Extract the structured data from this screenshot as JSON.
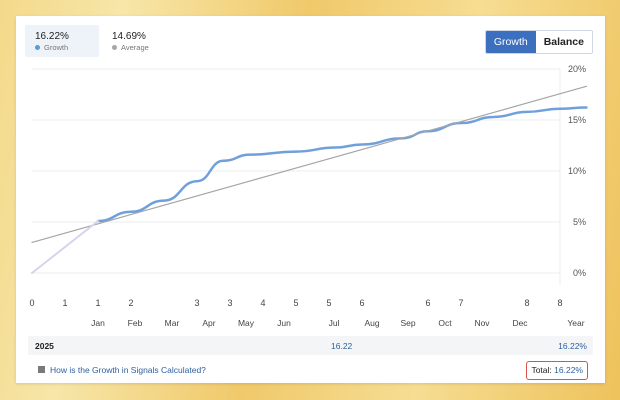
{
  "legend": {
    "growth": {
      "value": "16.22%",
      "label": "Growth",
      "color": "#5b9bd5"
    },
    "average": {
      "value": "14.69%",
      "label": "Average",
      "color": "#a6a6a6"
    }
  },
  "toggle": {
    "growth_label": "Growth",
    "balance_label": "Balance"
  },
  "chart_data": {
    "type": "line",
    "x_top_ticks": [
      "0",
      "1",
      "1",
      "2",
      "3",
      "3",
      "4",
      "5",
      "5",
      "6",
      "6",
      "7",
      "8",
      "8"
    ],
    "x_month_ticks": [
      "Jan",
      "Feb",
      "Mar",
      "Apr",
      "May",
      "Jun",
      "Jul",
      "Aug",
      "Sep",
      "Oct",
      "Nov",
      "Dec",
      "Year"
    ],
    "y_ticks": [
      "20%",
      "15%",
      "10%",
      "5%",
      "0%"
    ],
    "ylim": [
      0,
      20
    ],
    "xlim": [
      0,
      8
    ],
    "series": [
      {
        "name": "Growth",
        "color": "#6fa0dc",
        "points": [
          [
            1,
            5.1
          ],
          [
            1.5,
            6.0
          ],
          [
            2,
            7.1
          ],
          [
            2.5,
            9.0
          ],
          [
            2.9,
            11.0
          ],
          [
            3.3,
            11.6
          ],
          [
            4,
            11.9
          ],
          [
            4.6,
            12.3
          ],
          [
            5,
            12.6
          ],
          [
            5.6,
            13.2
          ],
          [
            6,
            13.9
          ],
          [
            6.5,
            14.7
          ],
          [
            7,
            15.3
          ],
          [
            7.5,
            15.8
          ],
          [
            8,
            16.1
          ],
          [
            8.4,
            16.22
          ]
        ]
      },
      {
        "name": "Average",
        "color": "#a6a6a6",
        "points": [
          [
            0,
            3.0
          ],
          [
            8.4,
            18.3
          ]
        ]
      },
      {
        "name": "",
        "color": "#d9d2ee",
        "points": [
          [
            0,
            0
          ],
          [
            1,
            5.1
          ]
        ]
      }
    ]
  },
  "footer": {
    "year": "2025",
    "month_value": "16.22",
    "year_value": "16.22%"
  },
  "help": {
    "text": "How is the Growth in Signals Calculated?"
  },
  "total": {
    "label": "Total:",
    "value": "16.22%"
  }
}
